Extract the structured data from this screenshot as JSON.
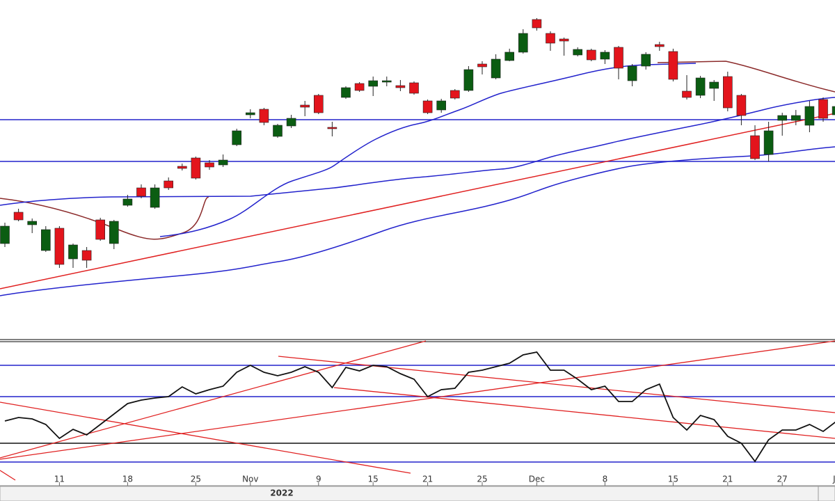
{
  "chart_data": [
    {
      "type": "candlestick",
      "categories": [
        null,
        null,
        null,
        null,
        "11",
        null,
        null,
        null,
        null,
        "18",
        null,
        null,
        null,
        null,
        "25",
        null,
        null,
        null,
        "Nov",
        null,
        null,
        null,
        null,
        "9",
        null,
        null,
        null,
        "15",
        null,
        null,
        null,
        "21",
        null,
        null,
        null,
        "25",
        null,
        null,
        null,
        "Dec",
        null,
        null,
        null,
        null,
        "8",
        null,
        null,
        null,
        null,
        "15",
        null,
        null,
        null,
        "21",
        null,
        null,
        null,
        "27",
        null,
        null,
        null,
        "Ja"
      ],
      "open": [
        150,
        195,
        177,
        140,
        172,
        128,
        140,
        184,
        150,
        205,
        230,
        202,
        240,
        261,
        273,
        266,
        263,
        292,
        335,
        343,
        304,
        319,
        349,
        363,
        317,
        360,
        380,
        376,
        382,
        377,
        381,
        355,
        342,
        370,
        370,
        408,
        388,
        413,
        425,
        472,
        452,
        444,
        421,
        428,
        415,
        432,
        384,
        405,
        436,
        426,
        369,
        363,
        373,
        390,
        363,
        305,
        278,
        327,
        327,
        320,
        357,
        335
      ],
      "high": [
        180,
        200,
        186,
        175,
        175,
        150,
        145,
        187,
        184,
        220,
        235,
        235,
        245,
        265,
        275,
        270,
        278,
        315,
        343,
        345,
        322,
        335,
        355,
        365,
        325,
        376,
        382,
        390,
        390,
        385,
        383,
        357,
        358,
        372,
        405,
        412,
        422,
        430,
        458,
        474,
        455,
        446,
        432,
        430,
        428,
        434,
        408,
        425,
        440,
        430,
        392,
        391,
        385,
        397,
        365,
        320,
        325,
        338,
        342,
        355,
        360,
        352
      ],
      "low": [
        145,
        182,
        165,
        138,
        115,
        115,
        115,
        154,
        142,
        203,
        215,
        200,
        227,
        255,
        242,
        256,
        260,
        290,
        330,
        320,
        302,
        316,
        333,
        336,
        304,
        358,
        368,
        362,
        376,
        369,
        364,
        336,
        338,
        357,
        368,
        393,
        386,
        412,
        423,
        456,
        427,
        420,
        419,
        412,
        408,
        386,
        376,
        400,
        427,
        383,
        357,
        359,
        355,
        340,
        320,
        270,
        268,
        305,
        320,
        310,
        325,
        328
      ],
      "close": [
        175,
        184,
        182,
        170,
        120,
        148,
        126,
        156,
        182,
        214,
        218,
        230,
        230,
        258,
        244,
        260,
        270,
        312,
        338,
        324,
        320,
        330,
        346,
        338,
        315,
        374,
        370,
        384,
        384,
        374,
        366,
        338,
        355,
        359,
        400,
        404,
        415,
        425,
        452,
        460,
        438,
        441,
        429,
        414,
        425,
        402,
        405,
        422,
        433,
        386,
        360,
        388,
        382,
        345,
        334,
        272,
        312,
        334,
        334,
        347,
        330,
        347
      ],
      "up_color": "#0b5d12",
      "down_color": "#e3141c",
      "ylim": [
        20,
        500
      ],
      "year": "2022"
    },
    {
      "type": "line",
      "values": [
        95,
        100,
        98,
        90,
        70,
        83,
        75,
        90,
        105,
        120,
        125,
        128,
        130,
        144,
        134,
        140,
        145,
        165,
        175,
        165,
        160,
        165,
        173,
        165,
        143,
        172,
        167,
        175,
        173,
        163,
        155,
        130,
        140,
        142,
        165,
        168,
        173,
        178,
        190,
        194,
        168,
        168,
        155,
        140,
        145,
        123,
        123,
        140,
        148,
        100,
        82,
        103,
        97,
        73,
        63,
        37,
        68,
        82,
        82,
        90,
        80,
        95
      ],
      "color": "#111111",
      "ylim": [
        10,
        212
      ]
    }
  ]
}
